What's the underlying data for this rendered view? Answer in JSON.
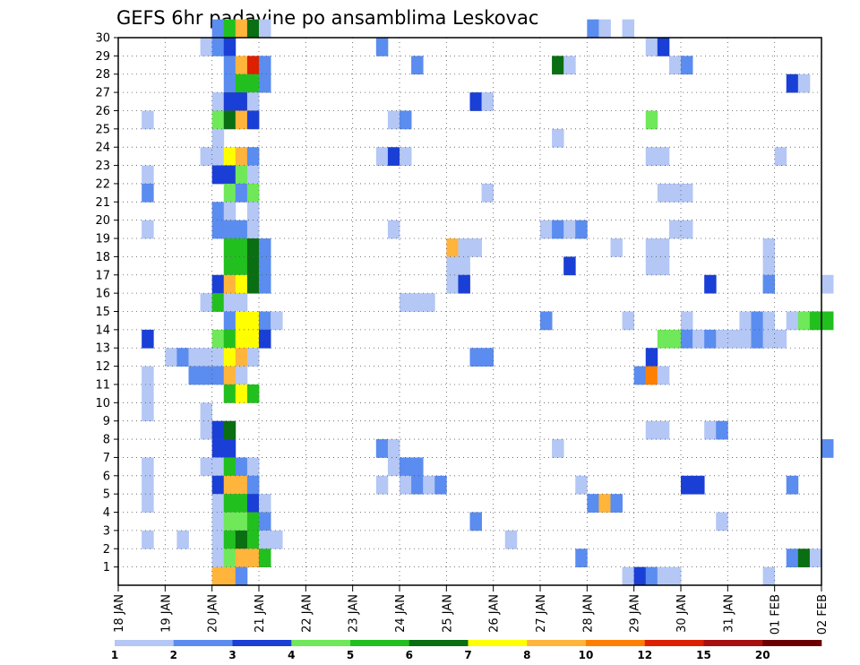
{
  "chart_data": {
    "type": "heatmap",
    "title": "GEFS 6hr padavine po ansamblima Leskovac",
    "x_tick_labels": [
      "18 JAN",
      "19 JAN",
      "20 JAN",
      "21 JAN",
      "22 JAN",
      "23 JAN",
      "24 JAN",
      "25 JAN",
      "26 JAN",
      "27 JAN",
      "28 JAN",
      "29 JAN",
      "30 JAN",
      "31 JAN",
      "01 FEB",
      "02 FEB"
    ],
    "y_tick_labels": [
      1,
      2,
      3,
      4,
      5,
      6,
      7,
      8,
      9,
      10,
      11,
      12,
      13,
      14,
      15,
      16,
      17,
      18,
      19,
      20,
      21,
      22,
      23,
      24,
      25,
      26,
      27,
      28,
      29,
      30
    ],
    "y_range": [
      0,
      30
    ],
    "x_steps_per_day": 4,
    "grid": true,
    "levels": [
      1,
      2,
      3,
      4,
      5,
      6,
      7,
      8,
      10,
      12,
      15,
      20
    ],
    "colors": [
      "#b4c7f5",
      "#5b8cef",
      "#1a3fd6",
      "#6fe85a",
      "#22c01e",
      "#0a6e12",
      "#ffff00",
      "#ffb43c",
      "#ff7f00",
      "#dd2000",
      "#a81010",
      "#6b0000"
    ],
    "cells": [
      [
        30,
        8,
        2
      ],
      [
        30,
        9,
        5
      ],
      [
        30,
        10,
        8
      ],
      [
        30,
        11,
        6
      ],
      [
        30,
        12,
        1
      ],
      [
        30,
        40,
        2
      ],
      [
        30,
        41,
        1
      ],
      [
        30,
        43,
        1
      ],
      [
        29,
        7,
        1
      ],
      [
        29,
        8,
        2
      ],
      [
        29,
        9,
        3
      ],
      [
        29,
        22,
        2
      ],
      [
        29,
        45,
        1
      ],
      [
        29,
        46,
        3
      ],
      [
        28,
        9,
        2
      ],
      [
        28,
        10,
        8
      ],
      [
        28,
        11,
        10
      ],
      [
        28,
        12,
        2
      ],
      [
        28,
        25,
        2
      ],
      [
        28,
        37,
        6
      ],
      [
        28,
        38,
        1
      ],
      [
        28,
        47,
        1
      ],
      [
        28,
        48,
        2
      ],
      [
        27,
        9,
        2
      ],
      [
        27,
        10,
        5
      ],
      [
        27,
        11,
        5
      ],
      [
        27,
        12,
        2
      ],
      [
        27,
        57,
        3
      ],
      [
        27,
        58,
        1
      ],
      [
        26,
        8,
        1
      ],
      [
        26,
        9,
        3
      ],
      [
        26,
        10,
        3
      ],
      [
        26,
        11,
        1
      ],
      [
        26,
        30,
        3
      ],
      [
        26,
        31,
        1
      ],
      [
        25,
        2,
        1
      ],
      [
        25,
        8,
        4
      ],
      [
        25,
        9,
        6
      ],
      [
        25,
        10,
        8
      ],
      [
        25,
        11,
        3
      ],
      [
        25,
        23,
        1
      ],
      [
        25,
        24,
        2
      ],
      [
        25,
        45,
        4
      ],
      [
        24,
        8,
        1
      ],
      [
        24,
        37,
        1
      ],
      [
        23,
        7,
        1
      ],
      [
        23,
        8,
        1
      ],
      [
        23,
        9,
        7
      ],
      [
        23,
        10,
        8
      ],
      [
        23,
        11,
        2
      ],
      [
        23,
        22,
        1
      ],
      [
        23,
        23,
        3
      ],
      [
        23,
        24,
        1
      ],
      [
        23,
        45,
        1
      ],
      [
        23,
        46,
        1
      ],
      [
        23,
        56,
        1
      ],
      [
        22,
        2,
        1
      ],
      [
        22,
        8,
        3
      ],
      [
        22,
        9,
        3
      ],
      [
        22,
        10,
        4
      ],
      [
        22,
        11,
        1
      ],
      [
        21,
        2,
        2
      ],
      [
        21,
        9,
        4
      ],
      [
        21,
        10,
        2
      ],
      [
        21,
        11,
        4
      ],
      [
        21,
        31,
        1
      ],
      [
        21,
        46,
        1
      ],
      [
        21,
        47,
        1
      ],
      [
        21,
        48,
        1
      ],
      [
        20,
        8,
        2
      ],
      [
        20,
        9,
        1
      ],
      [
        20,
        11,
        1
      ],
      [
        19,
        2,
        1
      ],
      [
        19,
        8,
        2
      ],
      [
        19,
        9,
        2
      ],
      [
        19,
        10,
        2
      ],
      [
        19,
        11,
        1
      ],
      [
        19,
        23,
        1
      ],
      [
        19,
        36,
        1
      ],
      [
        19,
        37,
        2
      ],
      [
        19,
        38,
        1
      ],
      [
        19,
        39,
        2
      ],
      [
        19,
        47,
        1
      ],
      [
        19,
        48,
        1
      ],
      [
        18,
        9,
        5
      ],
      [
        18,
        10,
        5
      ],
      [
        18,
        11,
        6
      ],
      [
        18,
        12,
        2
      ],
      [
        18,
        28,
        8
      ],
      [
        18,
        29,
        1
      ],
      [
        18,
        30,
        1
      ],
      [
        18,
        42,
        1
      ],
      [
        18,
        45,
        1
      ],
      [
        18,
        46,
        1
      ],
      [
        18,
        55,
        1
      ],
      [
        17,
        9,
        5
      ],
      [
        17,
        10,
        5
      ],
      [
        17,
        11,
        6
      ],
      [
        17,
        12,
        2
      ],
      [
        17,
        28,
        1
      ],
      [
        17,
        29,
        1
      ],
      [
        17,
        38,
        3
      ],
      [
        17,
        45,
        1
      ],
      [
        17,
        46,
        1
      ],
      [
        17,
        55,
        1
      ],
      [
        16,
        8,
        3
      ],
      [
        16,
        9,
        8
      ],
      [
        16,
        10,
        7
      ],
      [
        16,
        11,
        6
      ],
      [
        16,
        12,
        2
      ],
      [
        16,
        28,
        1
      ],
      [
        16,
        29,
        3
      ],
      [
        16,
        50,
        3
      ],
      [
        16,
        55,
        2
      ],
      [
        16,
        60,
        1
      ],
      [
        15,
        7,
        1
      ],
      [
        15,
        8,
        5
      ],
      [
        15,
        9,
        1
      ],
      [
        15,
        10,
        1
      ],
      [
        15,
        24,
        1
      ],
      [
        15,
        25,
        1
      ],
      [
        15,
        26,
        1
      ],
      [
        14,
        9,
        2
      ],
      [
        14,
        10,
        7
      ],
      [
        14,
        11,
        7
      ],
      [
        14,
        12,
        2
      ],
      [
        14,
        13,
        1
      ],
      [
        14,
        36,
        2
      ],
      [
        14,
        43,
        1
      ],
      [
        14,
        48,
        1
      ],
      [
        14,
        53,
        1
      ],
      [
        14,
        54,
        2
      ],
      [
        14,
        55,
        1
      ],
      [
        14,
        57,
        1
      ],
      [
        14,
        58,
        4
      ],
      [
        14,
        59,
        5
      ],
      [
        14,
        60,
        5
      ],
      [
        13,
        2,
        3
      ],
      [
        13,
        8,
        4
      ],
      [
        13,
        9,
        5
      ],
      [
        13,
        10,
        7
      ],
      [
        13,
        11,
        7
      ],
      [
        13,
        12,
        3
      ],
      [
        13,
        46,
        4
      ],
      [
        13,
        47,
        4
      ],
      [
        13,
        48,
        2
      ],
      [
        13,
        49,
        1
      ],
      [
        13,
        50,
        2
      ],
      [
        13,
        51,
        1
      ],
      [
        13,
        52,
        1
      ],
      [
        13,
        53,
        1
      ],
      [
        13,
        54,
        2
      ],
      [
        13,
        55,
        1
      ],
      [
        13,
        56,
        1
      ],
      [
        12,
        4,
        1
      ],
      [
        12,
        5,
        2
      ],
      [
        12,
        6,
        1
      ],
      [
        12,
        7,
        1
      ],
      [
        12,
        8,
        1
      ],
      [
        12,
        9,
        7
      ],
      [
        12,
        10,
        8
      ],
      [
        12,
        11,
        1
      ],
      [
        12,
        30,
        2
      ],
      [
        12,
        31,
        2
      ],
      [
        12,
        45,
        3
      ],
      [
        11,
        2,
        1
      ],
      [
        11,
        6,
        2
      ],
      [
        11,
        7,
        2
      ],
      [
        11,
        8,
        2
      ],
      [
        11,
        9,
        8
      ],
      [
        11,
        10,
        1
      ],
      [
        11,
        44,
        2
      ],
      [
        11,
        45,
        9
      ],
      [
        11,
        46,
        1
      ],
      [
        10,
        2,
        1
      ],
      [
        10,
        9,
        5
      ],
      [
        10,
        10,
        7
      ],
      [
        10,
        11,
        5
      ],
      [
        9,
        2,
        1
      ],
      [
        9,
        7,
        1
      ],
      [
        8,
        7,
        1
      ],
      [
        8,
        8,
        3
      ],
      [
        8,
        9,
        6
      ],
      [
        8,
        45,
        1
      ],
      [
        8,
        46,
        1
      ],
      [
        8,
        50,
        1
      ],
      [
        8,
        51,
        2
      ],
      [
        7,
        8,
        3
      ],
      [
        7,
        9,
        3
      ],
      [
        7,
        22,
        2
      ],
      [
        7,
        23,
        1
      ],
      [
        7,
        37,
        1
      ],
      [
        7,
        60,
        2
      ],
      [
        6,
        2,
        1
      ],
      [
        6,
        7,
        1
      ],
      [
        6,
        8,
        1
      ],
      [
        6,
        9,
        5
      ],
      [
        6,
        10,
        2
      ],
      [
        6,
        11,
        1
      ],
      [
        6,
        23,
        1
      ],
      [
        6,
        24,
        2
      ],
      [
        6,
        25,
        2
      ],
      [
        5,
        2,
        1
      ],
      [
        5,
        8,
        3
      ],
      [
        5,
        9,
        8
      ],
      [
        5,
        10,
        8
      ],
      [
        5,
        11,
        2
      ],
      [
        5,
        22,
        1
      ],
      [
        5,
        24,
        1
      ],
      [
        5,
        25,
        2
      ],
      [
        5,
        26,
        1
      ],
      [
        5,
        27,
        2
      ],
      [
        5,
        39,
        1
      ],
      [
        5,
        48,
        3
      ],
      [
        5,
        49,
        3
      ],
      [
        5,
        57,
        2
      ],
      [
        4,
        2,
        1
      ],
      [
        4,
        8,
        1
      ],
      [
        4,
        9,
        5
      ],
      [
        4,
        10,
        5
      ],
      [
        4,
        11,
        3
      ],
      [
        4,
        12,
        1
      ],
      [
        4,
        40,
        2
      ],
      [
        4,
        41,
        8
      ],
      [
        4,
        42,
        2
      ],
      [
        3,
        8,
        1
      ],
      [
        3,
        9,
        4
      ],
      [
        3,
        10,
        4
      ],
      [
        3,
        11,
        5
      ],
      [
        3,
        12,
        2
      ],
      [
        3,
        30,
        2
      ],
      [
        3,
        51,
        1
      ],
      [
        2,
        2,
        1
      ],
      [
        2,
        5,
        1
      ],
      [
        2,
        8,
        1
      ],
      [
        2,
        9,
        5
      ],
      [
        2,
        10,
        6
      ],
      [
        2,
        11,
        5
      ],
      [
        2,
        12,
        1
      ],
      [
        2,
        13,
        1
      ],
      [
        2,
        33,
        1
      ],
      [
        1,
        8,
        1
      ],
      [
        1,
        9,
        4
      ],
      [
        1,
        10,
        8
      ],
      [
        1,
        11,
        8
      ],
      [
        1,
        12,
        5
      ],
      [
        1,
        39,
        2
      ],
      [
        1,
        57,
        2
      ],
      [
        1,
        58,
        6
      ],
      [
        1,
        59,
        1
      ],
      [
        0,
        8,
        8
      ],
      [
        0,
        9,
        8
      ],
      [
        0,
        10,
        2
      ],
      [
        0,
        43,
        1
      ],
      [
        0,
        44,
        3
      ],
      [
        0,
        45,
        2
      ],
      [
        0,
        46,
        1
      ],
      [
        0,
        47,
        1
      ],
      [
        0,
        55,
        1
      ]
    ]
  }
}
